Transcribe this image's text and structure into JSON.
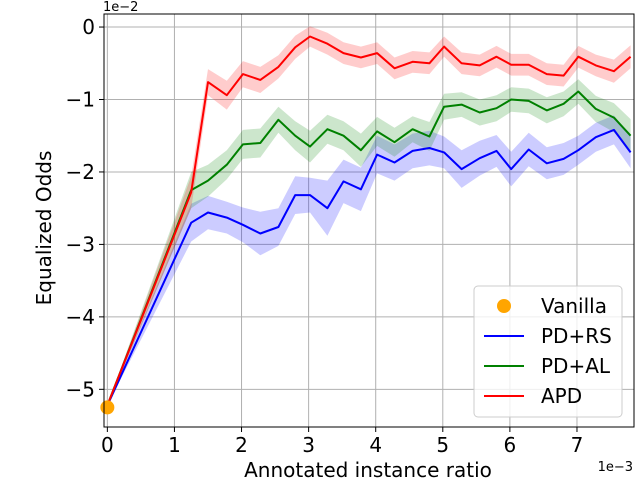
{
  "chart_data": {
    "type": "line",
    "xlabel": "Annotated instance ratio",
    "ylabel": "Equalized Odds",
    "x_scale_label": "1e−3",
    "y_scale_label": "1e−2",
    "xlim": [
      -0.05,
      7.85
    ],
    "ylim": [
      -5.52,
      0.18
    ],
    "x_ticks": [
      0,
      1,
      2,
      3,
      4,
      5,
      6,
      7
    ],
    "x_tick_labels": [
      "0",
      "1",
      "2",
      "3",
      "4",
      "5",
      "6",
      "7"
    ],
    "y_ticks": [
      0,
      -1,
      -2,
      -3,
      -4,
      -5
    ],
    "y_tick_labels": [
      "0",
      "−1",
      "−2",
      "−3",
      "−4",
      "−5"
    ],
    "grid": true,
    "legend_position": "lower-right",
    "vanilla": {
      "name": "Vanilla",
      "x": 0,
      "y": -5.25,
      "color": "#ffa500"
    },
    "x": [
      0,
      1.25,
      1.5,
      1.78,
      2.02,
      2.28,
      2.55,
      2.8,
      3.02,
      3.28,
      3.52,
      3.78,
      4.02,
      4.28,
      4.55,
      4.8,
      5.02,
      5.28,
      5.55,
      5.8,
      6.02,
      6.28,
      6.55,
      6.8,
      7.02,
      7.28,
      7.55,
      7.8
    ],
    "series": [
      {
        "name": "PD+RS",
        "color": "#0000ff",
        "band_color": "rgba(0,0,255,0.2)",
        "values": [
          -5.22,
          -2.7,
          -2.56,
          -2.63,
          -2.73,
          -2.85,
          -2.76,
          -2.32,
          -2.32,
          -2.5,
          -2.13,
          -2.24,
          -1.76,
          -1.87,
          -1.71,
          -1.67,
          -1.73,
          -1.96,
          -1.81,
          -1.71,
          -1.96,
          -1.69,
          -1.88,
          -1.82,
          -1.7,
          -1.52,
          -1.42,
          -1.73
        ],
        "band": [
          0,
          0.26,
          0.23,
          0.22,
          0.24,
          0.3,
          0.26,
          0.26,
          0.24,
          0.38,
          0.3,
          0.3,
          0.26,
          0.25,
          0.24,
          0.24,
          0.22,
          0.26,
          0.24,
          0.22,
          0.24,
          0.23,
          0.22,
          0.22,
          0.2,
          0.2,
          0.2,
          0.22
        ]
      },
      {
        "name": "PD+AL",
        "color": "#008000",
        "band_color": "rgba(0,128,0,0.2)",
        "values": [
          -5.22,
          -2.25,
          -2.12,
          -1.9,
          -1.62,
          -1.6,
          -1.28,
          -1.5,
          -1.65,
          -1.41,
          -1.5,
          -1.7,
          -1.44,
          -1.59,
          -1.41,
          -1.51,
          -1.1,
          -1.07,
          -1.18,
          -1.12,
          -1.0,
          -1.02,
          -1.15,
          -1.06,
          -0.89,
          -1.13,
          -1.25,
          -1.5
        ],
        "band": [
          0,
          0.25,
          0.22,
          0.2,
          0.2,
          0.2,
          0.18,
          0.2,
          0.22,
          0.2,
          0.2,
          0.23,
          0.2,
          0.2,
          0.18,
          0.2,
          0.18,
          0.17,
          0.18,
          0.18,
          0.17,
          0.17,
          0.18,
          0.17,
          0.17,
          0.18,
          0.2,
          0.23
        ]
      },
      {
        "name": "APD",
        "color": "#ff0000",
        "band_color": "rgba(255,0,0,0.2)",
        "values": [
          -5.22,
          -2.28,
          -0.76,
          -0.94,
          -0.65,
          -0.73,
          -0.55,
          -0.28,
          -0.13,
          -0.23,
          -0.36,
          -0.42,
          -0.36,
          -0.57,
          -0.48,
          -0.5,
          -0.27,
          -0.5,
          -0.53,
          -0.41,
          -0.52,
          -0.52,
          -0.65,
          -0.67,
          -0.41,
          -0.53,
          -0.61,
          -0.41
        ],
        "band": [
          0,
          0.22,
          0.18,
          0.2,
          0.18,
          0.18,
          0.16,
          0.16,
          0.14,
          0.15,
          0.15,
          0.15,
          0.15,
          0.15,
          0.15,
          0.15,
          0.14,
          0.15,
          0.15,
          0.15,
          0.15,
          0.15,
          0.15,
          0.15,
          0.15,
          0.15,
          0.16,
          0.16
        ]
      }
    ]
  }
}
